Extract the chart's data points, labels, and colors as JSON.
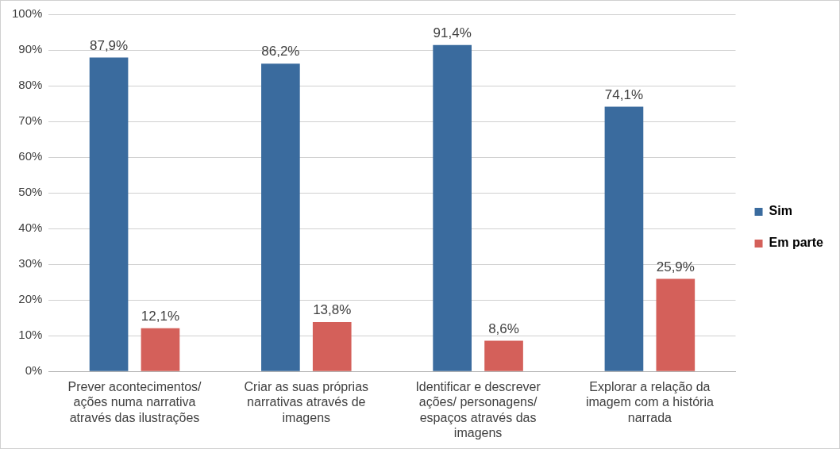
{
  "chart_data": {
    "type": "bar",
    "categories": [
      "Prever acontecimentos/ ações numa narrativa através das ilustrações",
      "Criar as suas próprias narrativas através de imagens",
      "Identificar e descrever ações/ personagens/ espaços através das imagens",
      "Explorar a relação da imagem com a história narrada"
    ],
    "series": [
      {
        "name": "Sim",
        "color": "#3a6b9e",
        "values": [
          87.9,
          86.2,
          91.4,
          74.1
        ],
        "value_labels": [
          "87,9%",
          "86,2%",
          "91,4%",
          "74,1%"
        ]
      },
      {
        "name": "Em parte",
        "color": "#d4605a",
        "values": [
          12.1,
          13.8,
          8.6,
          25.9
        ],
        "value_labels": [
          "12,1%",
          "13,8%",
          "8,6%",
          "25,9%"
        ]
      }
    ],
    "ylim": [
      0,
      100
    ],
    "yticks": [
      {
        "value": 0,
        "label": "0%"
      },
      {
        "value": 10,
        "label": "10%"
      },
      {
        "value": 20,
        "label": "20%"
      },
      {
        "value": 30,
        "label": "30%"
      },
      {
        "value": 40,
        "label": "40%"
      },
      {
        "value": 50,
        "label": "50%"
      },
      {
        "value": 60,
        "label": "60%"
      },
      {
        "value": 70,
        "label": "70%"
      },
      {
        "value": 80,
        "label": "80%"
      },
      {
        "value": 90,
        "label": "90%"
      },
      {
        "value": 100,
        "label": "100%"
      }
    ],
    "grid": "y",
    "legend": "right"
  }
}
